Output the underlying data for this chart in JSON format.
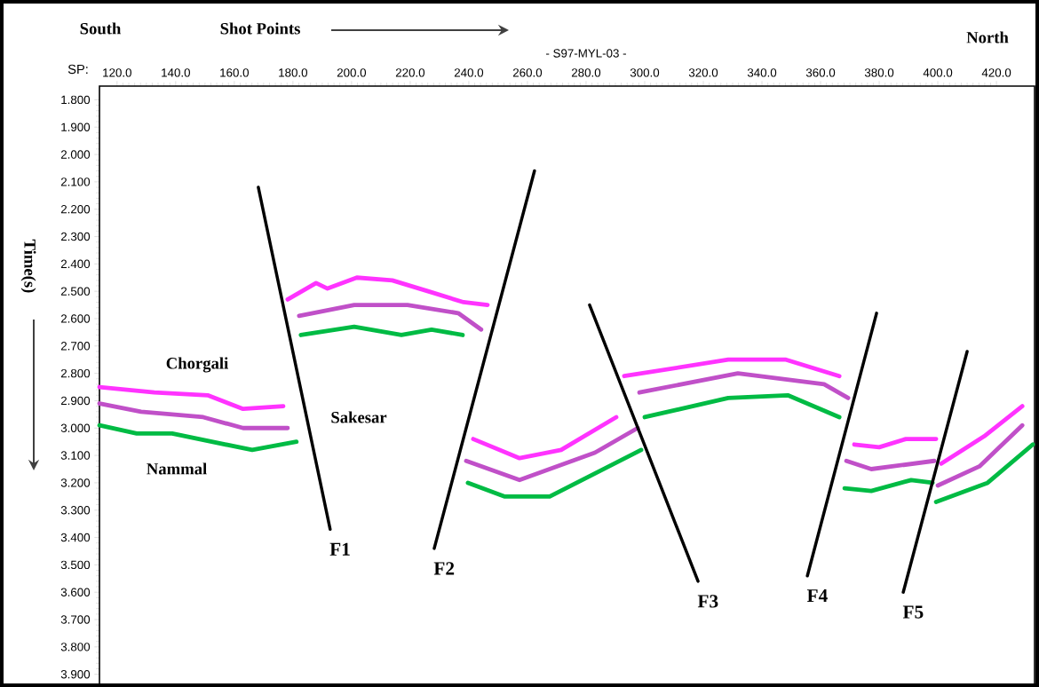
{
  "chart_data": {
    "type": "line",
    "title": "- S97-MYL-03 -",
    "xlabel": "Shot Points",
    "ylabel": "Time(s)",
    "xlim": [
      114,
      433
    ],
    "ylim": [
      3.94,
      1.75
    ],
    "xticks": [
      {
        "value": 120,
        "label": "120.0"
      },
      {
        "value": 140,
        "label": "140.0"
      },
      {
        "value": 160,
        "label": "160.0"
      },
      {
        "value": 180,
        "label": "180.0"
      },
      {
        "value": 200,
        "label": "200.0"
      },
      {
        "value": 220,
        "label": "220.0"
      },
      {
        "value": 240,
        "label": "240.0"
      },
      {
        "value": 260,
        "label": "260.0"
      },
      {
        "value": 280,
        "label": "280.0"
      },
      {
        "value": 300,
        "label": "300.0"
      },
      {
        "value": 320,
        "label": "320.0"
      },
      {
        "value": 340,
        "label": "340.0"
      },
      {
        "value": 360,
        "label": "360.0"
      },
      {
        "value": 380,
        "label": "380.0"
      },
      {
        "value": 400,
        "label": "400.0"
      },
      {
        "value": 420,
        "label": "420.0"
      }
    ],
    "yticks": [
      {
        "value": 1.8,
        "label": "1.800"
      },
      {
        "value": 1.9,
        "label": "1.900"
      },
      {
        "value": 2.0,
        "label": "2.000"
      },
      {
        "value": 2.1,
        "label": "2.100"
      },
      {
        "value": 2.2,
        "label": "2.200"
      },
      {
        "value": 2.3,
        "label": "2.300"
      },
      {
        "value": 2.4,
        "label": "2.400"
      },
      {
        "value": 2.5,
        "label": "2.500"
      },
      {
        "value": 2.6,
        "label": "2.600"
      },
      {
        "value": 2.7,
        "label": "2.700"
      },
      {
        "value": 2.8,
        "label": "2.800"
      },
      {
        "value": 2.9,
        "label": "2.900"
      },
      {
        "value": 3.0,
        "label": "3.000"
      },
      {
        "value": 3.1,
        "label": "3.100"
      },
      {
        "value": 3.2,
        "label": "3.200"
      },
      {
        "value": 3.3,
        "label": "3.300"
      },
      {
        "value": 3.4,
        "label": "3.400"
      },
      {
        "value": 3.5,
        "label": "3.500"
      },
      {
        "value": 3.6,
        "label": "3.600"
      },
      {
        "value": 3.7,
        "label": "3.700"
      },
      {
        "value": 3.8,
        "label": "3.800"
      },
      {
        "value": 3.9,
        "label": "3.900"
      }
    ],
    "series": [
      {
        "color": "#ff33ff",
        "x": [
          114,
          132.7,
          150.9,
          163,
          176.7
        ],
        "values": [
          2.85,
          2.87,
          2.88,
          2.93,
          2.92
        ]
      },
      {
        "color": "#c050c8",
        "x": [
          114,
          128.2,
          149.4,
          163,
          178.2
        ],
        "values": [
          2.91,
          2.94,
          2.96,
          3.0,
          3.0
        ]
      },
      {
        "color": "#00bb44",
        "x": [
          114,
          126.7,
          138.8,
          166.1,
          181.2
        ],
        "values": [
          2.99,
          3.02,
          3.02,
          3.08,
          3.05
        ]
      },
      {
        "color": "#ff33ff",
        "x": [
          178.2,
          187.9,
          191.8,
          201.8,
          213.9,
          226.1,
          238.2,
          246.4
        ],
        "values": [
          2.53,
          2.47,
          2.49,
          2.45,
          2.46,
          2.5,
          2.54,
          2.55
        ]
      },
      {
        "color": "#c050c8",
        "x": [
          182.1,
          200.9,
          219.1,
          236.4,
          244.2
        ],
        "values": [
          2.59,
          2.55,
          2.55,
          2.58,
          2.64
        ]
      },
      {
        "color": "#00bb44",
        "x": [
          182.7,
          200.9,
          217,
          227.3,
          237.9
        ],
        "values": [
          2.66,
          2.63,
          2.66,
          2.64,
          2.66
        ]
      },
      {
        "color": "#ff33ff",
        "x": [
          241.5,
          257.3,
          271.5,
          290.3
        ],
        "values": [
          3.04,
          3.11,
          3.08,
          2.96
        ]
      },
      {
        "color": "#c050c8",
        "x": [
          239.1,
          257.3,
          283,
          297.6
        ],
        "values": [
          3.12,
          3.19,
          3.09,
          3.0
        ]
      },
      {
        "color": "#00bb44",
        "x": [
          239.7,
          252.1,
          267.6,
          298.8
        ],
        "values": [
          3.2,
          3.25,
          3.25,
          3.08
        ]
      },
      {
        "color": "#ff33ff",
        "x": [
          293,
          328.5,
          348.2,
          366.4
        ],
        "values": [
          2.81,
          2.75,
          2.75,
          2.81
        ]
      },
      {
        "color": "#c050c8",
        "x": [
          298.2,
          331.8,
          361.2,
          369.4
        ],
        "values": [
          2.87,
          2.8,
          2.84,
          2.89
        ]
      },
      {
        "color": "#00bb44",
        "x": [
          300,
          328.5,
          348.8,
          366.4
        ],
        "values": [
          2.96,
          2.89,
          2.88,
          2.96
        ]
      },
      {
        "color": "#ff33ff",
        "x": [
          371.5,
          380,
          389.1,
          399.4
        ],
        "values": [
          3.06,
          3.07,
          3.04,
          3.04
        ]
      },
      {
        "color": "#c050c8",
        "x": [
          368.8,
          377.3,
          398.8
        ],
        "values": [
          3.12,
          3.15,
          3.12
        ]
      },
      {
        "color": "#00bb44",
        "x": [
          368.2,
          377.3,
          390.9,
          398.2
        ],
        "values": [
          3.22,
          3.23,
          3.19,
          3.2
        ]
      },
      {
        "color": "#ff33ff",
        "x": [
          401.2,
          415.8,
          428.8
        ],
        "values": [
          3.13,
          3.03,
          2.92
        ]
      },
      {
        "color": "#c050c8",
        "x": [
          400,
          414.2,
          428.8
        ],
        "values": [
          3.21,
          3.14,
          2.99
        ]
      },
      {
        "color": "#00bb44",
        "x": [
          399.4,
          417,
          432.4
        ],
        "values": [
          3.27,
          3.2,
          3.06
        ]
      },
      {
        "name": "F1",
        "color": "#000000",
        "x": [
          168.2,
          192.7
        ],
        "values": [
          2.12,
          3.37
        ]
      },
      {
        "name": "F2",
        "color": "#000000",
        "x": [
          262.4,
          228.2
        ],
        "values": [
          2.06,
          3.44
        ]
      },
      {
        "name": "F3",
        "color": "#000000",
        "x": [
          281.2,
          318.2
        ],
        "values": [
          2.55,
          3.56
        ]
      },
      {
        "name": "F4",
        "color": "#000000",
        "x": [
          379.1,
          355.5
        ],
        "values": [
          2.58,
          3.54
        ]
      },
      {
        "name": "F5",
        "color": "#000000",
        "x": [
          410,
          388.2
        ],
        "values": [
          2.72,
          3.6
        ]
      }
    ],
    "annotations": [
      "Chorgali",
      "Sakesar",
      "Nammal",
      "South",
      "North",
      "SP:"
    ]
  }
}
